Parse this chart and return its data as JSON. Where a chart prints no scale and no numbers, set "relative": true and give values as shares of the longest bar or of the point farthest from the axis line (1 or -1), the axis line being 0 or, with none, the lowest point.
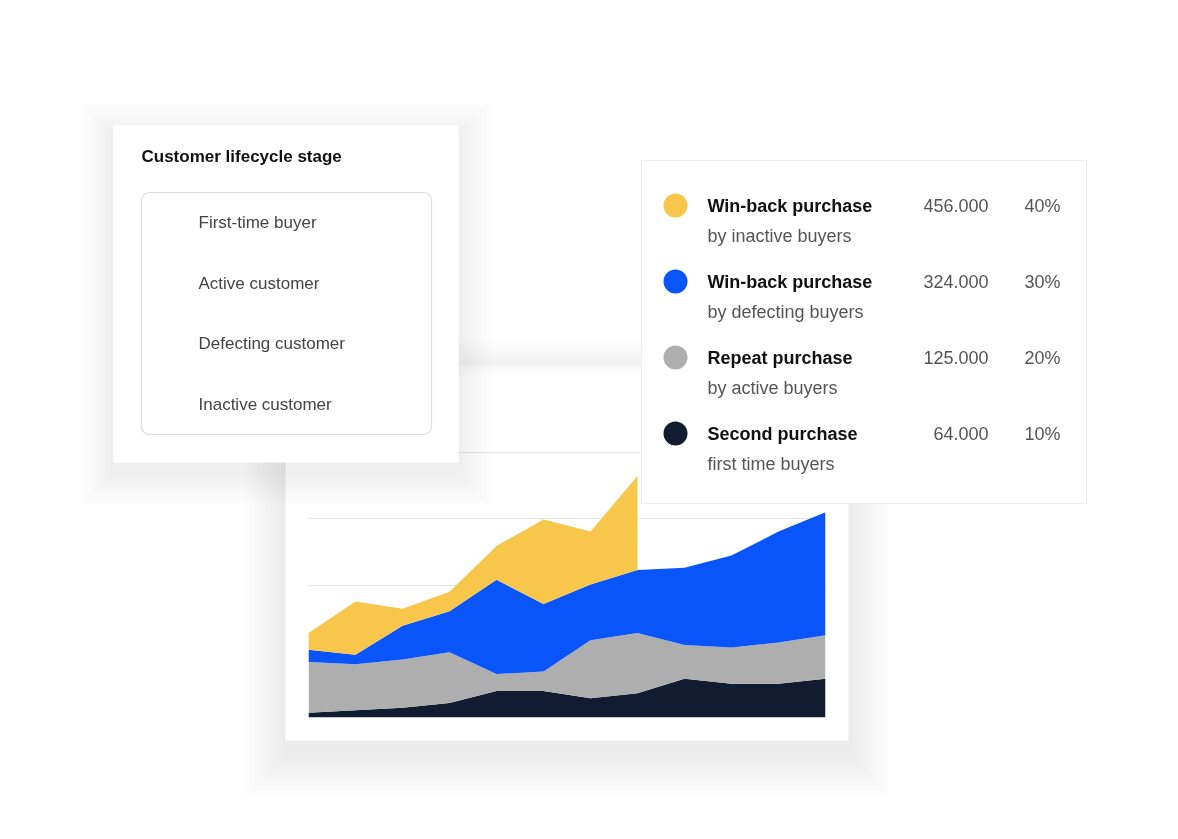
{
  "chart_data": [
    {
      "type": "area",
      "stacked": true,
      "relative": true,
      "grid": "y",
      "legend": "top right",
      "categories": [
        null,
        null,
        null,
        null,
        null,
        null,
        null,
        null,
        null,
        null,
        null,
        null
      ],
      "series": [
        {
          "name": "Second purchase\nfirst time buyers",
          "color": "#121c30",
          "values": [
            0.02,
            0.03,
            0.04,
            0.06,
            0.11,
            0.11,
            0.08,
            0.1,
            0.16,
            0.14,
            0.14,
            0.16
          ]
        },
        {
          "name": "Repeat purchase\nby active buyers",
          "color": "#aeaeae",
          "values": [
            0.21,
            0.19,
            0.2,
            0.21,
            0.07,
            0.08,
            0.24,
            0.25,
            0.14,
            0.15,
            0.17,
            0.18
          ]
        },
        {
          "name": "Win-back purchase\nby defecting buyers",
          "color": "#0a55fa",
          "values": [
            0.05,
            0.04,
            0.14,
            0.17,
            0.39,
            0.28,
            0.23,
            0.26,
            0.32,
            0.38,
            0.46,
            0.51
          ]
        },
        {
          "name": "Win-back purchase\nby inactive buyers",
          "color": "#f7c64b",
          "values": [
            0.07,
            0.22,
            0.07,
            0.08,
            0.14,
            0.35,
            0.22,
            0.39,
            null,
            null,
            null,
            null
          ]
        }
      ],
      "annotations": [
        "456.000",
        "40%",
        "324.000",
        "30%",
        "125.000",
        "20%",
        "64.000",
        "10%"
      ]
    },
    {
      "type": "other",
      "title": "Customer lifecycle stage",
      "annotations": [
        "First-time buyer",
        "Active customer",
        "Defecting customer",
        "Inactive customer"
      ]
    }
  ]
}
